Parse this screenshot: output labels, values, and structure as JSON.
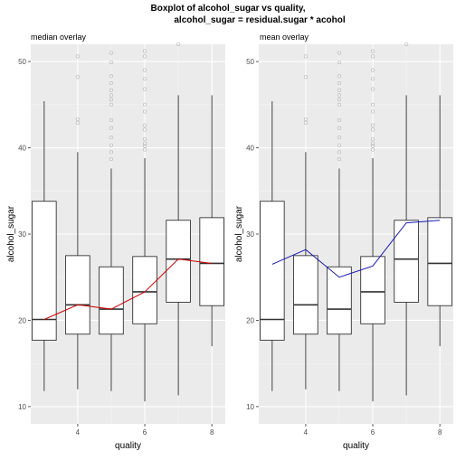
{
  "figure": {
    "title_line1": "Boxplot of alcohol_sugar vs quality,",
    "title_line2": "alcohol_sugar = residual.sugar * acohol"
  },
  "colors": {
    "panel_bg": "#EBEBEB",
    "grid_major": "#FFFFFF",
    "grid_minor": "#F5F5F5",
    "box_stroke": "#333333",
    "outlier": "#999999",
    "median_line": "#CC0000",
    "mean_line": "#1A1AB3"
  },
  "chart_data": [
    {
      "type": "box",
      "title": "median overlay",
      "xlabel": "quality",
      "ylabel": "alcohol_sugar",
      "ylim": [
        8.0,
        52.0
      ],
      "xlim": [
        2.6,
        8.4
      ],
      "yticks": [
        10,
        20,
        30,
        40,
        50
      ],
      "xticks": [
        4,
        6,
        8
      ],
      "grid": true,
      "boxes": [
        {
          "quality": 3,
          "whisker_low": 11.8,
          "q1": 17.7,
          "median": 20.1,
          "q3": 33.8,
          "whisker_high": 45.4,
          "outliers": []
        },
        {
          "quality": 4,
          "whisker_low": 12.0,
          "q1": 18.4,
          "median": 21.8,
          "q3": 27.5,
          "whisker_high": 39.5,
          "outliers": [
            42.9,
            43.3,
            48.2,
            50.6
          ]
        },
        {
          "quality": 5,
          "whisker_low": 11.8,
          "q1": 18.4,
          "median": 21.3,
          "q3": 26.2,
          "whisker_high": 37.6,
          "outliers": [
            38.7,
            39.5,
            40.3,
            41.2,
            42.3,
            43.2,
            45.0,
            45.6,
            46.1,
            46.7,
            47.5,
            48.3,
            49.9,
            51.0
          ]
        },
        {
          "quality": 6,
          "whisker_low": 10.6,
          "q1": 19.6,
          "median": 23.3,
          "q3": 27.4,
          "whisker_high": 38.8,
          "outliers": [
            39.8,
            40.2,
            40.5,
            41.0,
            42.1,
            42.6,
            44.2,
            45.0,
            46.8,
            48.0,
            49.0,
            50.6,
            51.2
          ]
        },
        {
          "quality": 7,
          "whisker_low": 11.3,
          "q1": 22.1,
          "median": 27.1,
          "q3": 31.6,
          "whisker_high": 46.1,
          "outliers": [
            52.0
          ]
        },
        {
          "quality": 8,
          "whisker_low": 17.0,
          "q1": 21.7,
          "median": 26.6,
          "q3": 31.9,
          "whisker_high": 46.1,
          "outliers": []
        }
      ],
      "overlay": {
        "stat": "median",
        "x": [
          3,
          4,
          5,
          6,
          7,
          8
        ],
        "y": [
          20.1,
          21.8,
          21.3,
          23.3,
          27.1,
          26.6
        ]
      }
    },
    {
      "type": "box",
      "title": "mean overlay",
      "xlabel": "quality",
      "ylabel": "alcohol_sugar",
      "ylim": [
        8.0,
        52.0
      ],
      "xlim": [
        2.6,
        8.4
      ],
      "yticks": [
        10,
        20,
        30,
        40,
        50
      ],
      "xticks": [
        4,
        6,
        8
      ],
      "grid": true,
      "boxes": [
        {
          "quality": 3,
          "whisker_low": 11.8,
          "q1": 17.7,
          "median": 20.1,
          "q3": 33.8,
          "whisker_high": 45.4,
          "outliers": []
        },
        {
          "quality": 4,
          "whisker_low": 12.0,
          "q1": 18.4,
          "median": 21.8,
          "q3": 27.5,
          "whisker_high": 39.5,
          "outliers": [
            42.9,
            43.3,
            48.2,
            50.6
          ]
        },
        {
          "quality": 5,
          "whisker_low": 11.8,
          "q1": 18.4,
          "median": 21.3,
          "q3": 26.2,
          "whisker_high": 37.6,
          "outliers": [
            38.7,
            39.5,
            40.3,
            41.2,
            42.3,
            43.2,
            45.0,
            45.6,
            46.1,
            46.7,
            47.5,
            48.3,
            49.9,
            51.0
          ]
        },
        {
          "quality": 6,
          "whisker_low": 10.6,
          "q1": 19.6,
          "median": 23.3,
          "q3": 27.4,
          "whisker_high": 38.8,
          "outliers": [
            39.8,
            40.2,
            40.5,
            41.0,
            42.1,
            42.6,
            44.2,
            45.0,
            46.8,
            48.0,
            49.0,
            50.6,
            51.2
          ]
        },
        {
          "quality": 7,
          "whisker_low": 11.3,
          "q1": 22.1,
          "median": 27.1,
          "q3": 31.6,
          "whisker_high": 46.1,
          "outliers": [
            52.0
          ]
        },
        {
          "quality": 8,
          "whisker_low": 17.0,
          "q1": 21.7,
          "median": 26.6,
          "q3": 31.9,
          "whisker_high": 46.1,
          "outliers": []
        }
      ],
      "overlay": {
        "stat": "mean",
        "x": [
          3,
          4,
          5,
          6,
          7,
          8
        ],
        "y": [
          26.5,
          28.2,
          25.0,
          26.3,
          31.3,
          31.6
        ]
      }
    }
  ]
}
